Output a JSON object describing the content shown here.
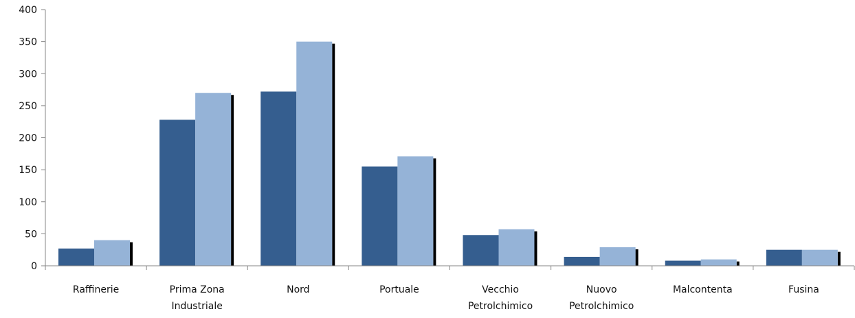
{
  "chart_data": {
    "type": "bar",
    "title": "",
    "xlabel": "",
    "ylabel": "",
    "ylim": [
      0,
      400
    ],
    "yticks": [
      0,
      50,
      100,
      150,
      200,
      250,
      300,
      350,
      400
    ],
    "grid": false,
    "legend": "none",
    "categories": [
      [
        "Raffinerie"
      ],
      [
        "Prima Zona",
        "Industriale"
      ],
      [
        "Nord"
      ],
      [
        "Portuale"
      ],
      [
        "Vecchio",
        "Petrolchimico"
      ],
      [
        "Nuovo",
        "Petrolchimico"
      ],
      [
        "Malcontenta"
      ],
      [
        "Fusina"
      ]
    ],
    "series": [
      {
        "color": "#355e8f",
        "values": [
          27,
          228,
          272,
          155,
          48,
          14,
          8,
          25
        ]
      },
      {
        "color": "#95b3d7",
        "values": [
          40,
          270,
          350,
          171,
          57,
          29,
          10,
          25
        ]
      }
    ],
    "shadow_color": "#000000",
    "axis_color": "#868686"
  }
}
